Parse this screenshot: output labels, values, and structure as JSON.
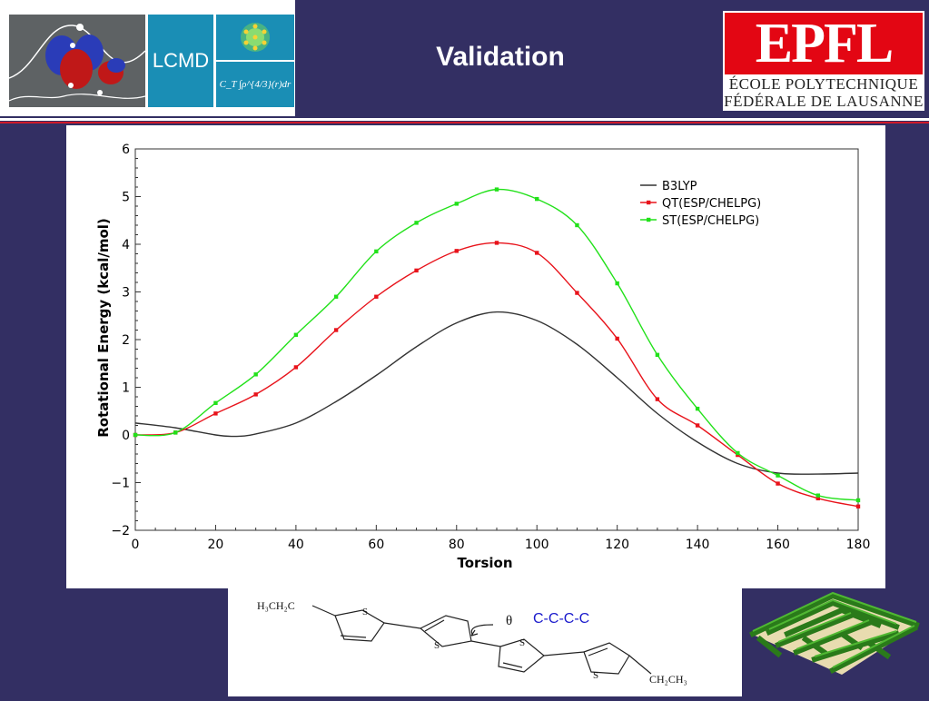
{
  "header": {
    "title": "Validation",
    "lab_logo_text": "LCMD",
    "lab_formula_text": "C_T ∫ρ^{4/3}(r)dr",
    "epfl_mark": "EPFL",
    "epfl_name_line1": "ÉCOLE POLYTECHNIQUE",
    "epfl_name_line2": "FÉDÉRALE DE LAUSANNE"
  },
  "colors": {
    "background": "#332f63",
    "accent_red": "#d01a2a",
    "lab_blue": "#1a8eb5",
    "series_b3lyp": "#333333",
    "series_qt": "#e8131b",
    "series_st": "#22e11a"
  },
  "chart_data": {
    "type": "line",
    "title": "",
    "xlabel": "Torsion",
    "ylabel": "Rotational Energy (kcal/mol)",
    "xlim": [
      0,
      180
    ],
    "ylim": [
      -2,
      6
    ],
    "xticks": [
      0,
      20,
      40,
      60,
      80,
      100,
      120,
      140,
      160,
      180
    ],
    "yticks": [
      -2,
      -1,
      0,
      1,
      2,
      3,
      4,
      5,
      6
    ],
    "grid": false,
    "legend_position": "top-right",
    "series": [
      {
        "name": "B3LYP",
        "color": "#333333",
        "markers": false,
        "x": [
          0,
          10,
          20,
          25,
          30,
          40,
          50,
          60,
          70,
          80,
          90,
          100,
          110,
          120,
          130,
          140,
          150,
          160,
          170,
          180
        ],
        "y": [
          0.25,
          0.15,
          0.0,
          -0.03,
          0.02,
          0.25,
          0.7,
          1.25,
          1.85,
          2.35,
          2.58,
          2.4,
          1.9,
          1.2,
          0.45,
          -0.15,
          -0.6,
          -0.8,
          -0.82,
          -0.8
        ]
      },
      {
        "name": "QT(ESP/CHELPG)",
        "color": "#e8131b",
        "markers": true,
        "x": [
          0,
          10,
          20,
          30,
          40,
          50,
          60,
          70,
          80,
          90,
          100,
          110,
          120,
          130,
          140,
          150,
          160,
          170,
          180
        ],
        "y": [
          0.0,
          0.05,
          0.45,
          0.85,
          1.42,
          2.2,
          2.9,
          3.45,
          3.86,
          4.03,
          3.82,
          2.98,
          2.02,
          0.75,
          0.2,
          -0.42,
          -1.02,
          -1.33,
          -1.5
        ]
      },
      {
        "name": "ST(ESP/CHELPG)",
        "color": "#22e11a",
        "markers": true,
        "x": [
          0,
          10,
          20,
          30,
          40,
          50,
          60,
          70,
          80,
          90,
          100,
          110,
          120,
          130,
          140,
          150,
          160,
          170,
          180
        ],
        "y": [
          0.0,
          0.05,
          0.67,
          1.27,
          2.1,
          2.9,
          3.85,
          4.45,
          4.85,
          5.15,
          4.95,
          4.4,
          3.18,
          1.68,
          0.55,
          -0.38,
          -0.85,
          -1.27,
          -1.37
        ]
      }
    ]
  },
  "molecule": {
    "left_group": "H₃CH₂C",
    "right_group": "CH₂CH₃",
    "sulfur": "S",
    "angle_symbol": "θ",
    "dihedral_label": "C-C-C-C"
  }
}
